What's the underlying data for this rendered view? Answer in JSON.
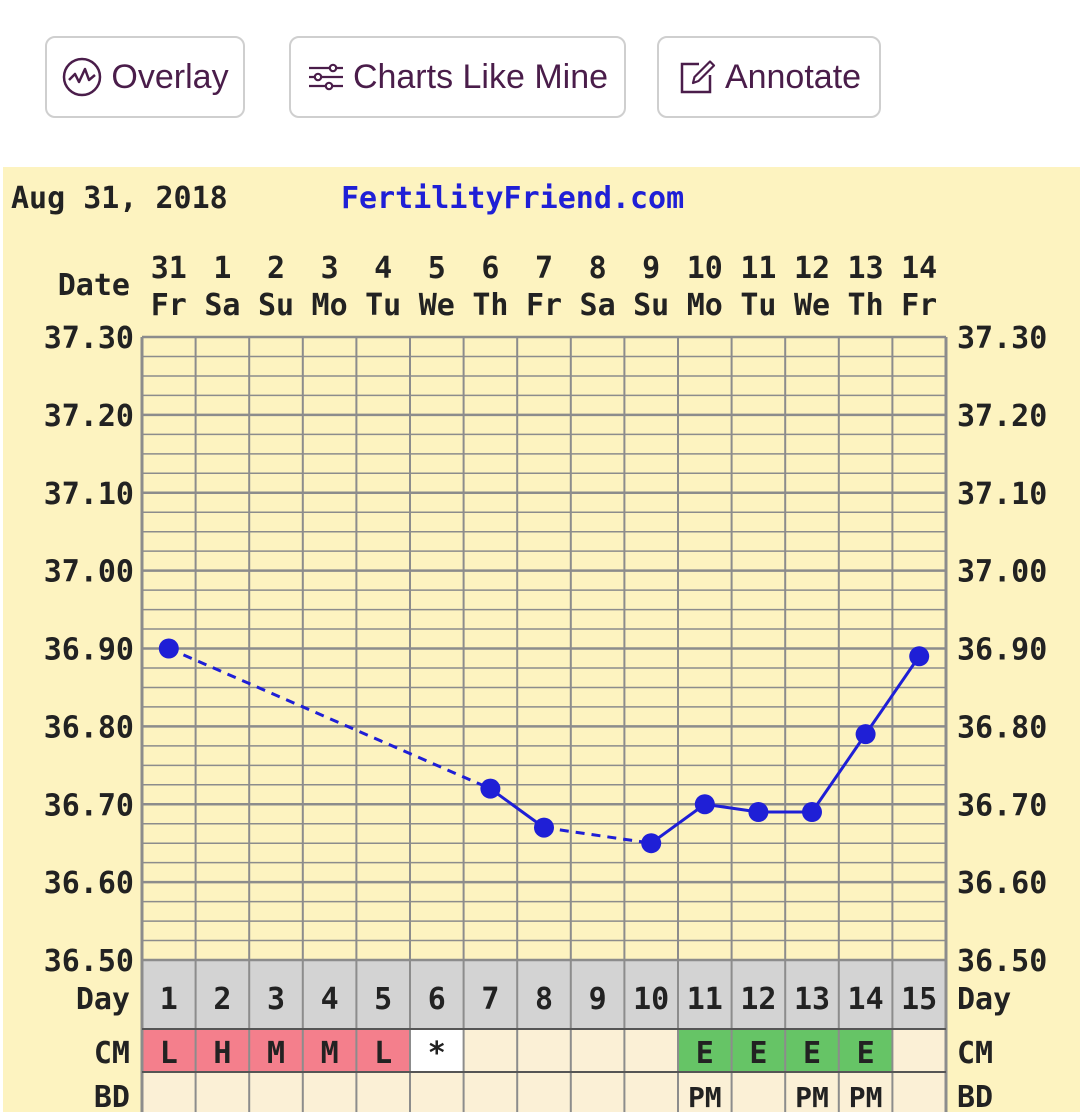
{
  "toolbar": {
    "overlay_label": "Overlay",
    "charts_like_mine_label": "Charts Like Mine",
    "annotate_label": "Annotate"
  },
  "colors": {
    "background": "#fdf3c0",
    "grid": "#8c8c8c",
    "temp_line": "#1f1fd6",
    "site_link": "#1f1fd6",
    "cm_menstrual": "#f47f8c",
    "cm_fertile": "#66c466",
    "day_row": "#d3d3d3",
    "toolbar_text": "#4a1d4a"
  },
  "chart_data": {
    "type": "line",
    "start_date_label": "Aug 31, 2018",
    "site": "FertilityFriend.com",
    "row_labels": {
      "date": "Date",
      "day": "Day",
      "cm": "CM",
      "bd": "BD"
    },
    "dates": [
      "31",
      "1",
      "2",
      "3",
      "4",
      "5",
      "6",
      "7",
      "8",
      "9",
      "10",
      "11",
      "12",
      "13",
      "14"
    ],
    "weekdays": [
      "Fr",
      "Sa",
      "Su",
      "Mo",
      "Tu",
      "We",
      "Th",
      "Fr",
      "Sa",
      "Su",
      "Mo",
      "Tu",
      "We",
      "Th",
      "Fr"
    ],
    "cycle_days": [
      "1",
      "2",
      "3",
      "4",
      "5",
      "6",
      "7",
      "8",
      "9",
      "10",
      "11",
      "12",
      "13",
      "14",
      "15"
    ],
    "y_ticks": [
      "37.30",
      "37.20",
      "37.10",
      "37.00",
      "36.90",
      "36.80",
      "36.70",
      "36.60",
      "36.50"
    ],
    "ylim": [
      36.5,
      37.3
    ],
    "series": [
      {
        "values": [
          36.9,
          null,
          null,
          null,
          null,
          null,
          36.72,
          36.67,
          null,
          36.65,
          36.7,
          36.69,
          36.69,
          36.79,
          36.89
        ]
      }
    ],
    "cm": [
      "L",
      "H",
      "M",
      "M",
      "L",
      "*",
      "",
      "",
      "",
      "",
      "E",
      "E",
      "E",
      "E",
      ""
    ],
    "cm_kind": [
      "menstrual",
      "menstrual",
      "menstrual",
      "menstrual",
      "menstrual",
      "none",
      "none",
      "none",
      "none",
      "none",
      "fertile",
      "fertile",
      "fertile",
      "fertile",
      "none"
    ],
    "bd": [
      "",
      "",
      "",
      "",
      "",
      "",
      "",
      "",
      "",
      "",
      "PM",
      "",
      "PM",
      "PM",
      ""
    ]
  }
}
